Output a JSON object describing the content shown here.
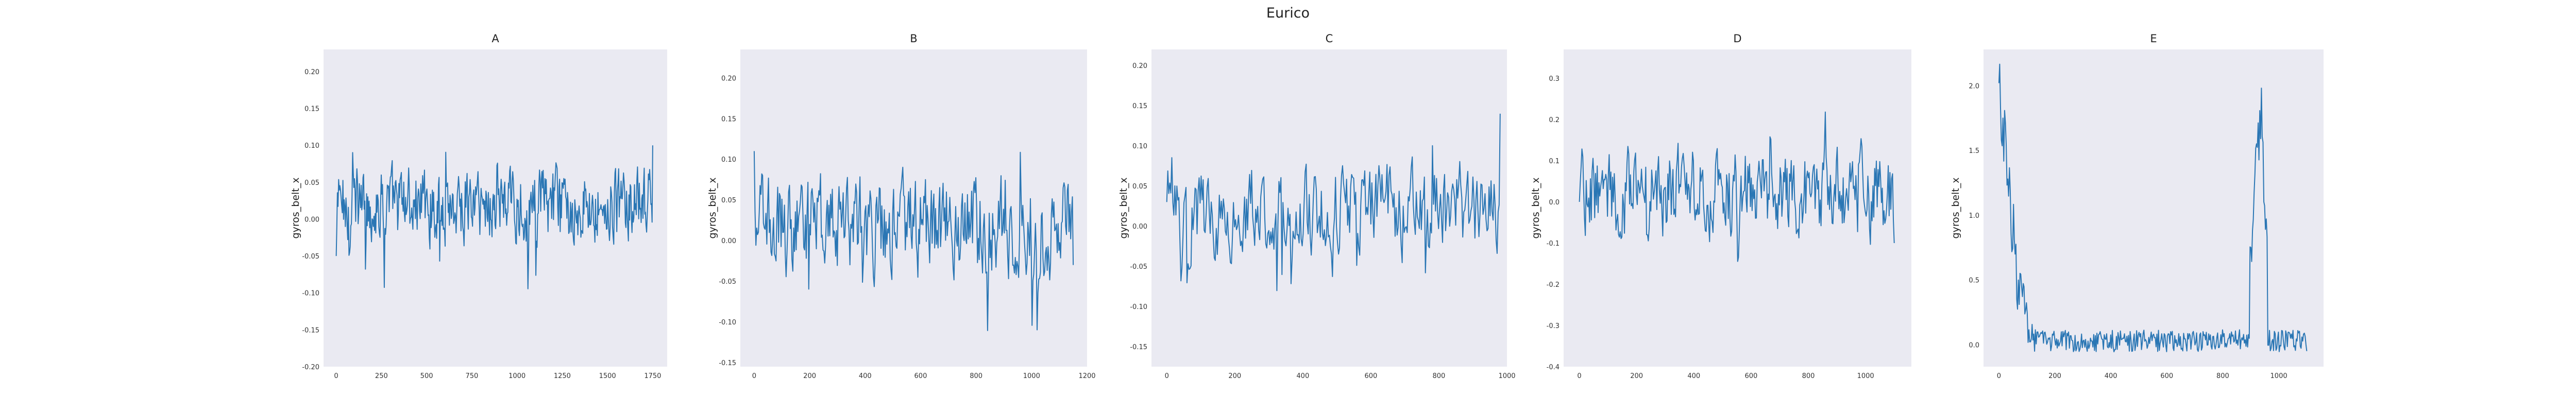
{
  "figure": {
    "title": "Eurico"
  },
  "chart_data": [
    {
      "type": "line",
      "title": "A",
      "xlabel": "",
      "ylabel": "gyros_belt_x",
      "xlim": [
        -70,
        1830
      ],
      "ylim": [
        -0.2,
        0.23
      ],
      "xticks": [
        0,
        250,
        500,
        750,
        1000,
        1250,
        1500,
        1750
      ],
      "yticks": [
        -0.2,
        -0.15,
        -0.1,
        -0.05,
        0.0,
        0.05,
        0.1,
        0.15,
        0.2
      ],
      "grid": false,
      "series": [
        {
          "x": [
            0,
            1750
          ],
          "y": [
            -0.05,
            0.1
          ]
        }
      ]
    },
    {
      "type": "line",
      "title": "B",
      "xlabel": "",
      "ylabel": "gyros_belt_x",
      "xlim": [
        -50,
        1200
      ],
      "ylim": [
        -0.155,
        0.235
      ],
      "xticks": [
        0,
        200,
        400,
        600,
        800,
        1000,
        1200
      ],
      "yticks": [
        -0.15,
        -0.1,
        -0.05,
        0.0,
        0.05,
        0.1,
        0.15,
        0.2
      ],
      "grid": false,
      "series": [
        {
          "x": [
            0,
            1150
          ],
          "y": [
            0.11,
            -0.03
          ]
        }
      ]
    },
    {
      "type": "line",
      "title": "C",
      "xlabel": "",
      "ylabel": "gyros_belt_x",
      "xlim": [
        -45,
        1000
      ],
      "ylim": [
        -0.175,
        0.22
      ],
      "xticks": [
        0,
        200,
        400,
        600,
        800,
        1000
      ],
      "yticks": [
        -0.15,
        -0.1,
        -0.05,
        0.0,
        0.05,
        0.1,
        0.15,
        0.2
      ],
      "grid": false,
      "series": [
        {
          "x": [
            0,
            980
          ],
          "y": [
            0.03,
            0.14
          ]
        }
      ]
    },
    {
      "type": "line",
      "title": "D",
      "xlabel": "",
      "ylabel": "gyros_belt_x",
      "xlim": [
        -55,
        1160
      ],
      "ylim": [
        -0.4,
        0.37
      ],
      "xticks": [
        0,
        200,
        400,
        600,
        800,
        1000
      ],
      "yticks": [
        -0.4,
        -0.3,
        -0.2,
        -0.1,
        0.0,
        0.1,
        0.2,
        0.3
      ],
      "grid": false,
      "series": [
        {
          "x": [
            0,
            1100
          ],
          "y": [
            0.0,
            -0.1
          ]
        }
      ]
    },
    {
      "type": "line",
      "title": "E",
      "xlabel": "",
      "ylabel": "gyros_belt_x",
      "xlim": [
        -55,
        1160
      ],
      "ylim": [
        -0.17,
        2.28
      ],
      "xticks": [
        0,
        200,
        400,
        600,
        800,
        1000
      ],
      "yticks": [
        0.0,
        0.5,
        1.0,
        1.5,
        2.0
      ],
      "grid": false,
      "series": [
        {
          "x": [
            0,
            1100
          ],
          "y": [
            2.02,
            -0.05
          ]
        }
      ]
    }
  ]
}
